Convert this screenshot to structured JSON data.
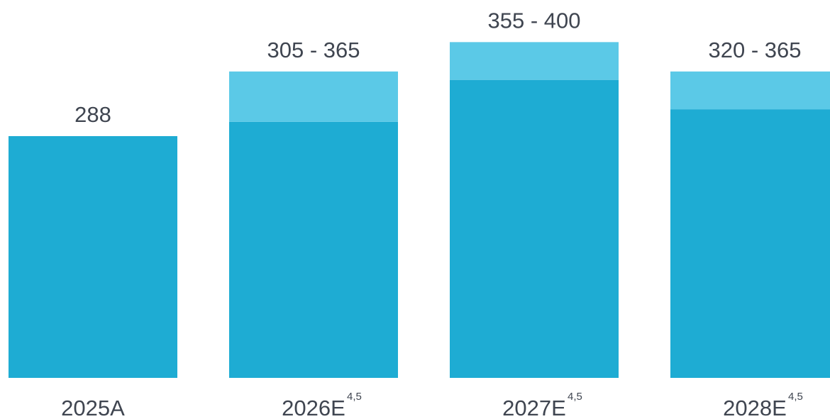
{
  "chart_data": {
    "type": "bar",
    "stacked": true,
    "categories": [
      "2025A",
      "2026E",
      "2027E",
      "2028E"
    ],
    "category_footnotes": [
      "",
      "4,5",
      "4,5",
      "4,5"
    ],
    "series": [
      {
        "values": [
          288,
          305,
          355,
          320
        ]
      },
      {
        "values": [
          0,
          60,
          45,
          45
        ]
      }
    ],
    "data_labels": [
      "288",
      "305 - 365",
      "355 - 400",
      "320 - 365"
    ],
    "ylim": [
      0,
      400
    ],
    "grid": false,
    "legend": "none",
    "colors": {
      "base": "#1eacd3",
      "range": "#5bc9e7",
      "text": "#3f4550"
    }
  }
}
